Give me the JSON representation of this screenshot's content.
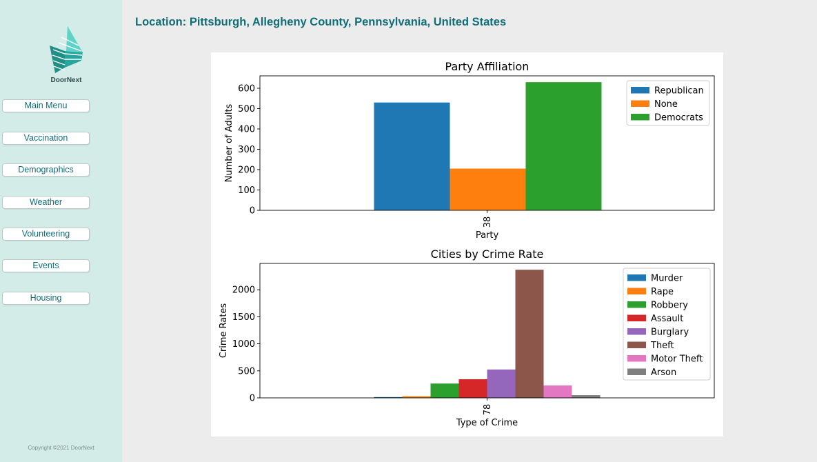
{
  "sidebar": {
    "brand": "DoorNext",
    "nav": [
      "Main Menu",
      "Vaccination",
      "Demographics",
      "Weather",
      "Volunteering",
      "Events",
      "Housing"
    ],
    "copyright": "Copyright ©2021 DoorNext"
  },
  "header": {
    "location": "Location: Pittsburgh, Allegheny County, Pennsylvania, United States"
  },
  "colors": {
    "sidebar_bg": "#d3ece7",
    "accent": "#0f6e78"
  },
  "chart_data": [
    {
      "type": "bar",
      "title": "Party Affiliation",
      "xlabel": "Party",
      "ylabel": "Number of Adults",
      "categories": [
        "38"
      ],
      "series": [
        {
          "name": "Republican",
          "values": [
            530
          ],
          "color": "#1f77b4"
        },
        {
          "name": "None",
          "values": [
            205
          ],
          "color": "#ff7f0e"
        },
        {
          "name": "Democrats",
          "values": [
            630
          ],
          "color": "#2ca02c"
        }
      ],
      "ylim": [
        0,
        661
      ],
      "yticks": [
        0,
        100,
        200,
        300,
        400,
        500,
        600
      ],
      "legend": "top-right"
    },
    {
      "type": "bar",
      "title": "Cities by Crime Rate",
      "xlabel": "Type of Crime",
      "ylabel": "Crime Rates",
      "categories": [
        "78"
      ],
      "series": [
        {
          "name": "Murder",
          "values": [
            15
          ],
          "color": "#1f77b4"
        },
        {
          "name": "Rape",
          "values": [
            30
          ],
          "color": "#ff7f0e"
        },
        {
          "name": "Robbery",
          "values": [
            265
          ],
          "color": "#2ca02c"
        },
        {
          "name": "Assault",
          "values": [
            345
          ],
          "color": "#d62728"
        },
        {
          "name": "Burglary",
          "values": [
            525
          ],
          "color": "#9467bd"
        },
        {
          "name": "Theft",
          "values": [
            2370
          ],
          "color": "#8c564b"
        },
        {
          "name": "Motor Theft",
          "values": [
            230
          ],
          "color": "#e377c2"
        },
        {
          "name": "Arson",
          "values": [
            50
          ],
          "color": "#7f7f7f"
        }
      ],
      "ylim": [
        0,
        2487
      ],
      "yticks": [
        0,
        500,
        1000,
        1500,
        2000
      ],
      "legend": "top-right"
    }
  ]
}
